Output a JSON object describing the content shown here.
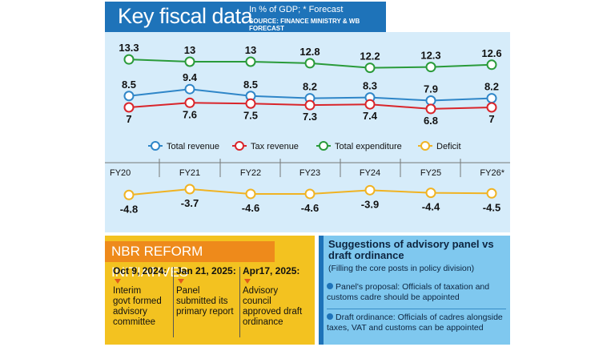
{
  "header": {
    "title": "Key fiscal data",
    "subtitle": "In % of GDP; * Forecast",
    "source": "SOURCE: FINANCE MINISTRY & WB FORECAST"
  },
  "colors": {
    "total_revenue": "#2f86c8",
    "tax_revenue": "#d9252b",
    "total_expenditure": "#2a9b3a",
    "deficit": "#f0b323"
  },
  "chart_data": {
    "type": "line",
    "categories": [
      "FY20",
      "FY21",
      "FY22",
      "FY23",
      "FY24",
      "FY25",
      "FY26*"
    ],
    "series": [
      {
        "name": "Total expenditure",
        "values": [
          13.3,
          13,
          13,
          12.8,
          12.2,
          12.3,
          12.6
        ],
        "labels": [
          "13.3",
          "13",
          "13",
          "12.8",
          "12.2",
          "12.3",
          "12.6"
        ]
      },
      {
        "name": "Total revenue",
        "values": [
          8.5,
          9.4,
          8.5,
          8.2,
          8.3,
          7.9,
          8.2
        ],
        "labels": [
          "8.5",
          "9.4",
          "8.5",
          "8.2",
          "8.3",
          "7.9",
          "8.2"
        ]
      },
      {
        "name": "Tax revenue",
        "values": [
          7,
          7.6,
          7.5,
          7.3,
          7.4,
          6.8,
          7
        ],
        "labels": [
          "7",
          "7.6",
          "7.5",
          "7.3",
          "7.4",
          "6.8",
          "7"
        ]
      },
      {
        "name": "Deficit",
        "values": [
          -4.8,
          -3.7,
          -4.6,
          -4.6,
          -3.9,
          -4.4,
          -4.5
        ],
        "labels": [
          "-4.8",
          "-3.7",
          "-4.6",
          "-4.6",
          "-3.9",
          "-4.4",
          "-4.5"
        ]
      }
    ],
    "legend": [
      "Total revenue",
      "Tax revenue",
      "Total expenditure",
      "Deficit"
    ]
  },
  "nbr": {
    "title": "NBR REFORM INITIATIVES",
    "items": [
      {
        "date": "Oct 9, 2024:",
        "text": [
          "Interim",
          "govt formed",
          "advisory",
          "committee"
        ]
      },
      {
        "date": "Jan 21, 2025:",
        "text": [
          "Panel",
          "submitted its",
          "primary report"
        ]
      },
      {
        "date": "Apr17, 2025:",
        "text": [
          "Advisory",
          "council",
          "approved draft",
          "ordinance"
        ]
      }
    ]
  },
  "advisory": {
    "title": "Suggestions of advisory panel vs draft ordinance",
    "note": "(Filling the core posts in policy division)",
    "items": [
      {
        "text": "Panel's proposal: Officials of taxation and customs cadre should be appointed"
      },
      {
        "text": "Draft ordinance: Officials of cadres alongside taxes, VAT and customs can be appointed"
      }
    ]
  }
}
